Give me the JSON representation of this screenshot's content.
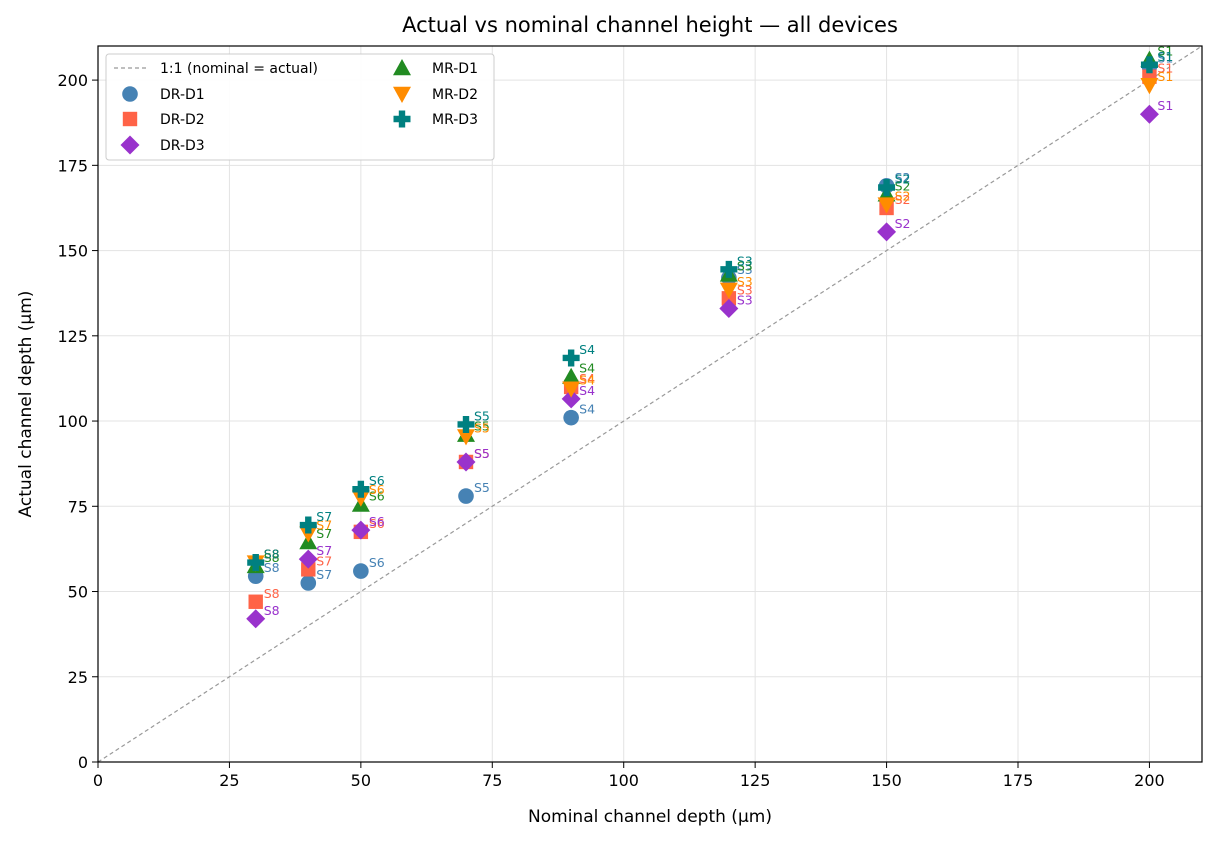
{
  "chart_data": {
    "type": "scatter",
    "title": "Actual vs nominal channel height — all devices",
    "xlabel": "Nominal channel depth (µm)",
    "ylabel": "Actual channel depth (µm)",
    "xlim": [
      0,
      210
    ],
    "ylim": [
      0,
      210
    ],
    "xticks": [
      0,
      25,
      50,
      75,
      100,
      125,
      150,
      175,
      200
    ],
    "yticks": [
      0,
      25,
      50,
      75,
      100,
      125,
      150,
      175,
      200
    ],
    "grid": true,
    "legend_position": "top-left",
    "reference_line": {
      "label": "1:1 (nominal = actual)",
      "color": "#999999",
      "x": [
        0,
        210
      ],
      "y": [
        0,
        210
      ]
    },
    "series": [
      {
        "name": "DR-D1",
        "marker": "circle",
        "color": "#4682b4",
        "points": [
          {
            "x": 200,
            "y": 204,
            "label": "S1"
          },
          {
            "x": 150,
            "y": 169,
            "label": "S2"
          },
          {
            "x": 120,
            "y": 142,
            "label": "S3"
          },
          {
            "x": 90,
            "y": 101,
            "label": "S4"
          },
          {
            "x": 70,
            "y": 78,
            "label": "S5"
          },
          {
            "x": 50,
            "y": 56,
            "label": "S6"
          },
          {
            "x": 40,
            "y": 52.5,
            "label": "S7"
          },
          {
            "x": 30,
            "y": 54.5,
            "label": "S8"
          }
        ]
      },
      {
        "name": "DR-D2",
        "marker": "square",
        "color": "#ff6347",
        "points": [
          {
            "x": 200,
            "y": 201,
            "label": "S1"
          },
          {
            "x": 150,
            "y": 162.5,
            "label": "S2"
          },
          {
            "x": 120,
            "y": 136,
            "label": "S3"
          },
          {
            "x": 90,
            "y": 110,
            "label": "S4"
          },
          {
            "x": 70,
            "y": 88,
            "label": "S5"
          },
          {
            "x": 50,
            "y": 67.5,
            "label": "S6"
          },
          {
            "x": 40,
            "y": 56.5,
            "label": "S7"
          },
          {
            "x": 30,
            "y": 47,
            "label": "S8"
          }
        ]
      },
      {
        "name": "DR-D3",
        "marker": "diamond",
        "color": "#9932cc",
        "points": [
          {
            "x": 200,
            "y": 190,
            "label": "S1"
          },
          {
            "x": 150,
            "y": 155.5,
            "label": "S2"
          },
          {
            "x": 120,
            "y": 133,
            "label": "S3"
          },
          {
            "x": 90,
            "y": 106.5,
            "label": "S4"
          },
          {
            "x": 70,
            "y": 88,
            "label": "S5"
          },
          {
            "x": 50,
            "y": 68,
            "label": "S6"
          },
          {
            "x": 40,
            "y": 59.5,
            "label": "S7"
          },
          {
            "x": 30,
            "y": 42,
            "label": "S8"
          }
        ]
      },
      {
        "name": "MR-D1",
        "marker": "triangle-up",
        "color": "#228b22",
        "points": [
          {
            "x": 200,
            "y": 206,
            "label": "S1"
          },
          {
            "x": 150,
            "y": 166.5,
            "label": "S2"
          },
          {
            "x": 120,
            "y": 143,
            "label": "S3"
          },
          {
            "x": 90,
            "y": 113,
            "label": "S4"
          },
          {
            "x": 70,
            "y": 96,
            "label": "S5"
          },
          {
            "x": 50,
            "y": 75.5,
            "label": "S6"
          },
          {
            "x": 40,
            "y": 64.5,
            "label": "S7"
          },
          {
            "x": 30,
            "y": 57.5,
            "label": "S8"
          }
        ]
      },
      {
        "name": "MR-D2",
        "marker": "triangle-down",
        "color": "#ff8c00",
        "points": [
          {
            "x": 200,
            "y": 198.5,
            "label": "S1"
          },
          {
            "x": 150,
            "y": 163.5,
            "label": "S2"
          },
          {
            "x": 120,
            "y": 138.5,
            "label": "S3"
          },
          {
            "x": 90,
            "y": 109.5,
            "label": "S4"
          },
          {
            "x": 70,
            "y": 95.5,
            "label": "S5"
          },
          {
            "x": 50,
            "y": 77.5,
            "label": "S6"
          },
          {
            "x": 40,
            "y": 67,
            "label": "S7"
          },
          {
            "x": 30,
            "y": 58.5,
            "label": "S8"
          }
        ]
      },
      {
        "name": "MR-D3",
        "marker": "plus",
        "color": "#008080",
        "points": [
          {
            "x": 200,
            "y": 204.5,
            "label": "S1"
          },
          {
            "x": 150,
            "y": 168.5,
            "label": "S2"
          },
          {
            "x": 120,
            "y": 144.5,
            "label": "S3"
          },
          {
            "x": 90,
            "y": 118.5,
            "label": "S4"
          },
          {
            "x": 70,
            "y": 99,
            "label": "S5"
          },
          {
            "x": 50,
            "y": 80,
            "label": "S6"
          },
          {
            "x": 40,
            "y": 69.5,
            "label": "S7"
          },
          {
            "x": 30,
            "y": 58.5,
            "label": "S8"
          }
        ]
      }
    ]
  }
}
